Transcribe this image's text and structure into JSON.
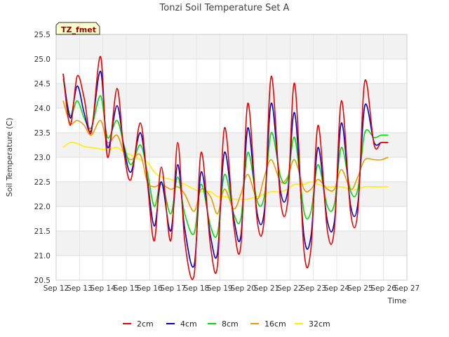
{
  "chart_data": {
    "type": "line",
    "title": "Tonzi Soil Temperature Set A",
    "xlabel": "Time",
    "ylabel": "Soil Temperature (C)",
    "ylim": [
      20.5,
      25.5
    ],
    "xlim": [
      12,
      27
    ],
    "x_ticks": [
      12,
      13,
      14,
      15,
      16,
      17,
      18,
      19,
      20,
      21,
      22,
      23,
      24,
      25,
      26,
      27
    ],
    "x_tick_labels": [
      "Sep 12",
      "Sep 13",
      "Sep 14",
      "Sep 15",
      "Sep 16",
      "Sep 17",
      "Sep 18",
      "Sep 19",
      "Sep 20",
      "Sep 21",
      "Sep 22",
      "Sep 23",
      "Sep 24",
      "Sep 25",
      "Sep 26",
      "Sep 27"
    ],
    "y_ticks": [
      20.5,
      21.0,
      21.5,
      22.0,
      22.5,
      23.0,
      23.5,
      24.0,
      24.5,
      25.0,
      25.5
    ],
    "y_tick_labels": [
      "20.5",
      "21.0",
      "21.5",
      "22.0",
      "22.5",
      "23.0",
      "23.5",
      "24.0",
      "24.5",
      "25.0",
      "25.5"
    ],
    "grid": true,
    "legend_position": "bottom",
    "annotation": "TZ_fmet",
    "series": [
      {
        "name": "2cm",
        "color": "#ee0000",
        "x": [
          12.3,
          12.6,
          12.9,
          13.2,
          13.5,
          13.9,
          14.2,
          14.6,
          14.9,
          15.2,
          15.6,
          15.9,
          16.2,
          16.5,
          16.9,
          17.2,
          17.5,
          17.9,
          18.2,
          18.6,
          18.9,
          19.2,
          19.6,
          19.9,
          20.2,
          20.6,
          20.9,
          21.2,
          21.6,
          21.9,
          22.2,
          22.6,
          22.9,
          23.2,
          23.6,
          23.9,
          24.2,
          24.6,
          24.9,
          25.2,
          25.6,
          25.9,
          26.2
        ],
        "y": [
          24.7,
          23.65,
          24.65,
          24.2,
          23.5,
          25.05,
          23.0,
          24.4,
          23.1,
          22.55,
          23.7,
          22.5,
          21.3,
          22.8,
          21.3,
          23.3,
          21.3,
          20.6,
          23.1,
          21.2,
          20.8,
          23.6,
          21.6,
          21.2,
          24.1,
          21.7,
          21.75,
          24.65,
          22.1,
          22.1,
          24.5,
          21.1,
          21.15,
          23.65,
          21.5,
          21.55,
          24.15,
          21.85,
          21.9,
          24.55,
          23.25,
          23.3,
          23.3
        ]
      },
      {
        "name": "4cm",
        "color": "#0000cc",
        "x": [
          12.3,
          12.6,
          12.9,
          13.2,
          13.5,
          13.9,
          14.2,
          14.6,
          14.9,
          15.2,
          15.6,
          15.9,
          16.2,
          16.5,
          16.9,
          17.2,
          17.5,
          17.9,
          18.2,
          18.6,
          18.9,
          19.2,
          19.6,
          19.9,
          20.2,
          20.6,
          20.9,
          21.2,
          21.6,
          21.9,
          22.2,
          22.6,
          22.9,
          23.2,
          23.6,
          23.9,
          24.2,
          24.6,
          24.9,
          25.2,
          25.6,
          25.9,
          26.2
        ],
        "y": [
          24.7,
          23.8,
          24.45,
          23.9,
          23.55,
          24.75,
          23.2,
          24.05,
          23.2,
          22.7,
          23.5,
          22.55,
          21.6,
          22.5,
          21.5,
          22.85,
          21.55,
          20.8,
          22.7,
          21.4,
          21.05,
          23.1,
          21.75,
          21.4,
          23.6,
          21.85,
          21.9,
          24.1,
          22.3,
          22.3,
          23.9,
          21.4,
          21.4,
          23.2,
          21.7,
          21.7,
          23.7,
          22.0,
          22.05,
          24.05,
          23.3,
          23.3,
          23.3
        ]
      },
      {
        "name": "8cm",
        "color": "#00dd00",
        "x": [
          12.3,
          12.6,
          12.9,
          13.2,
          13.5,
          13.9,
          14.2,
          14.6,
          14.9,
          15.2,
          15.6,
          15.9,
          16.2,
          16.5,
          16.9,
          17.2,
          17.5,
          17.9,
          18.2,
          18.6,
          18.9,
          19.2,
          19.6,
          19.9,
          20.2,
          20.6,
          20.9,
          21.2,
          21.6,
          21.9,
          22.2,
          22.6,
          22.9,
          23.2,
          23.6,
          23.9,
          24.2,
          24.6,
          24.9,
          25.2,
          25.6,
          25.9,
          26.2
        ],
        "y": [
          24.6,
          23.85,
          24.15,
          23.8,
          23.6,
          24.25,
          23.4,
          23.75,
          23.25,
          22.85,
          23.25,
          22.7,
          22.0,
          22.5,
          21.85,
          22.6,
          21.85,
          21.45,
          22.45,
          21.6,
          21.45,
          22.65,
          21.85,
          21.75,
          23.1,
          22.1,
          22.2,
          23.5,
          22.6,
          22.55,
          23.4,
          21.9,
          21.9,
          22.85,
          22.0,
          22.05,
          23.2,
          22.3,
          22.35,
          23.5,
          23.4,
          23.45,
          23.45
        ]
      },
      {
        "name": "16cm",
        "color": "#ee9900",
        "x": [
          12.3,
          12.6,
          12.9,
          13.2,
          13.5,
          13.9,
          14.2,
          14.6,
          14.9,
          15.2,
          15.6,
          15.9,
          16.2,
          16.5,
          16.9,
          17.2,
          17.5,
          17.9,
          18.2,
          18.6,
          18.9,
          19.2,
          19.6,
          19.9,
          20.2,
          20.6,
          20.9,
          21.2,
          21.6,
          21.9,
          22.2,
          22.6,
          22.9,
          23.2,
          23.6,
          23.9,
          24.2,
          24.6,
          24.9,
          25.2,
          25.6,
          25.9,
          26.2
        ],
        "y": [
          24.15,
          23.7,
          23.75,
          23.65,
          23.45,
          23.75,
          23.3,
          23.45,
          23.1,
          22.95,
          23.05,
          22.5,
          22.4,
          22.45,
          22.35,
          22.4,
          22.25,
          21.9,
          22.35,
          22.2,
          21.85,
          22.35,
          21.95,
          22.25,
          22.65,
          22.15,
          22.6,
          22.95,
          22.5,
          22.6,
          22.95,
          22.35,
          22.35,
          22.55,
          22.35,
          22.35,
          22.75,
          22.35,
          22.6,
          22.95,
          22.95,
          22.95,
          23.0
        ]
      },
      {
        "name": "32cm",
        "color": "#ffee00",
        "x": [
          12.3,
          12.6,
          12.9,
          13.2,
          13.5,
          13.9,
          14.2,
          14.6,
          14.9,
          15.2,
          15.6,
          15.9,
          16.2,
          16.5,
          16.9,
          17.2,
          17.5,
          17.9,
          18.2,
          18.6,
          18.9,
          19.2,
          19.6,
          19.9,
          20.2,
          20.6,
          20.9,
          21.2,
          21.6,
          21.9,
          22.2,
          22.6,
          22.9,
          23.2,
          23.6,
          23.9,
          24.2,
          24.6,
          24.9,
          25.2,
          25.6,
          25.9,
          26.2
        ],
        "y": [
          23.2,
          23.3,
          23.28,
          23.22,
          23.2,
          23.17,
          23.15,
          23.2,
          23.1,
          23.05,
          22.95,
          22.9,
          22.7,
          22.6,
          22.55,
          22.5,
          22.45,
          22.35,
          22.3,
          22.3,
          22.2,
          22.2,
          22.15,
          22.15,
          22.15,
          22.2,
          22.25,
          22.3,
          22.3,
          22.35,
          22.45,
          22.45,
          22.5,
          22.45,
          22.4,
          22.4,
          22.4,
          22.35,
          22.35,
          22.4,
          22.4,
          22.4,
          22.4
        ]
      }
    ]
  }
}
